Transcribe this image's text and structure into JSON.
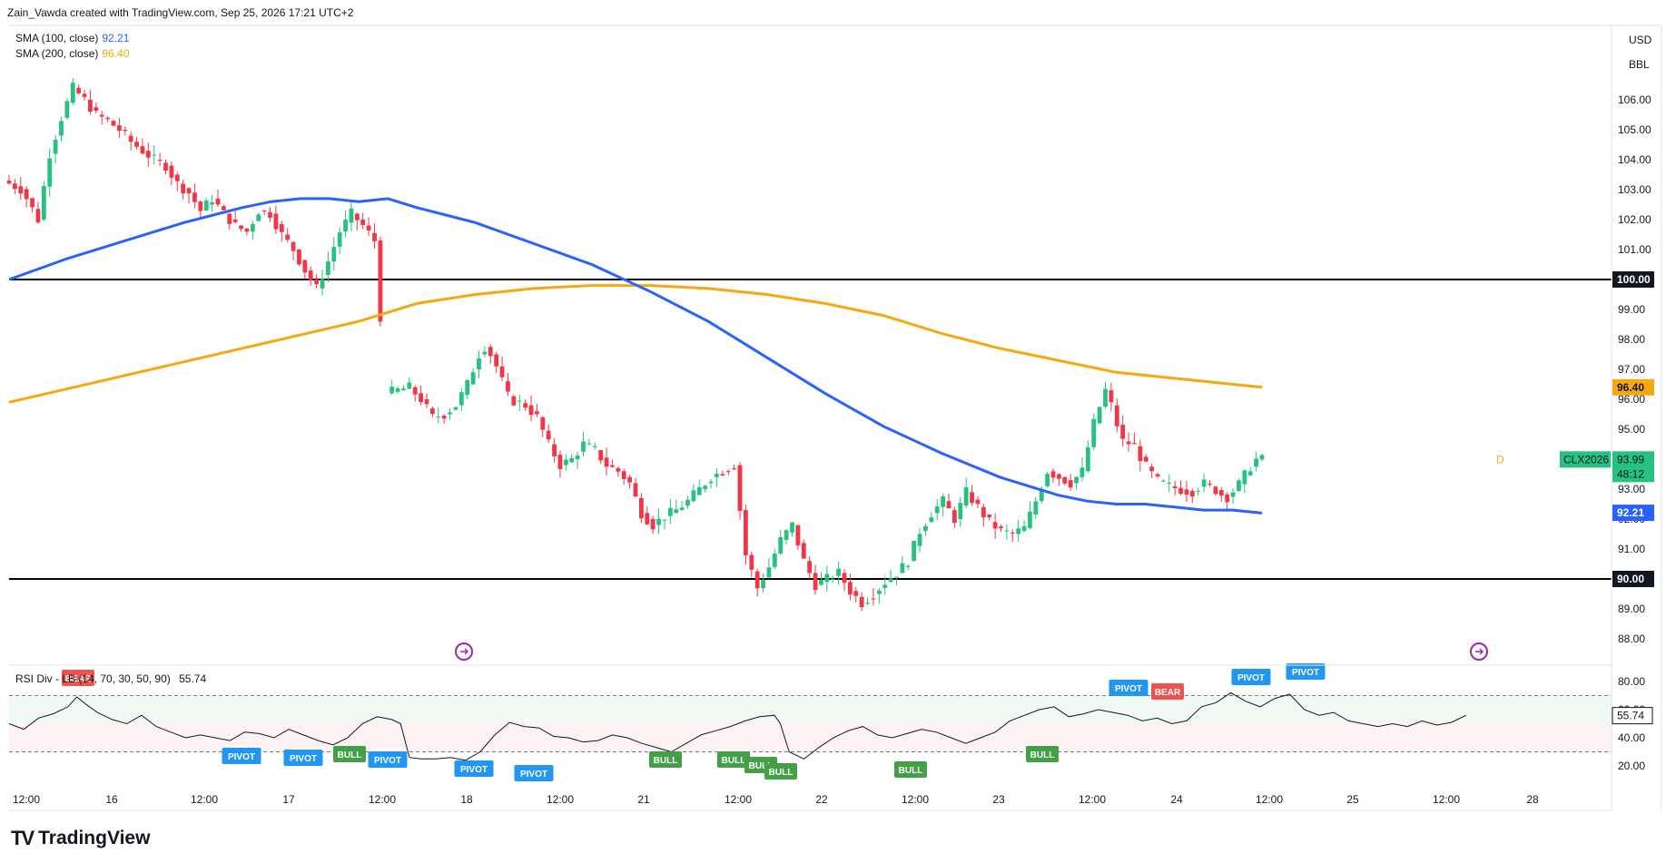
{
  "header": {
    "attribution": "Zain_Vawda created with TradingView.com, Sep 25, 2026 17:21 UTC+2"
  },
  "legend": {
    "sma100": {
      "label": "SMA (100, close)",
      "value": "92.21",
      "color": "#2962ff"
    },
    "sma200": {
      "label": "SMA (200, close)",
      "value": "96.40",
      "color": "#f5a90e"
    }
  },
  "axis_units": {
    "currency": "USD",
    "unit": "BBL"
  },
  "price_axis": {
    "ticks": [
      "106.00",
      "105.00",
      "104.00",
      "103.00",
      "102.00",
      "101.00",
      "100.00",
      "99.00",
      "98.00",
      "97.00",
      "96.00",
      "95.00",
      "94.00",
      "93.00",
      "92.00",
      "91.00",
      "90.00",
      "89.00",
      "88.00"
    ]
  },
  "price_labels": {
    "level_100": "100.00",
    "level_90": "90.00",
    "sma200": "96.40",
    "sma100": "92.21",
    "symbol": "CLX2026",
    "last_price": "93.99",
    "countdown": "48:12",
    "dividend_marker": "D"
  },
  "time_axis": {
    "labels": [
      "12:00",
      "16",
      "12:00",
      "17",
      "12:00",
      "18",
      "12:00",
      "21",
      "12:00",
      "22",
      "12:00",
      "23",
      "12:00",
      "24",
      "12:00",
      "25",
      "12:00",
      "28"
    ]
  },
  "rsi": {
    "legend": "RSI Div - LB (14, 70, 30, 50, 90)",
    "value": "55.74",
    "ticks": [
      "80.00",
      "60.00",
      "40.00",
      "20.00"
    ],
    "overbought": 70,
    "oversold": 30,
    "mid": 50,
    "markers": [
      {
        "text": "BEAR",
        "kind": "bear"
      },
      {
        "text": "PIVOT",
        "kind": "pivot"
      },
      {
        "text": "PIVOT",
        "kind": "pivot"
      },
      {
        "text": "BULL",
        "kind": "bull"
      },
      {
        "text": "PIVOT",
        "kind": "pivot"
      },
      {
        "text": "PIVOT",
        "kind": "pivot"
      },
      {
        "text": "PIVOT",
        "kind": "pivot"
      },
      {
        "text": "BULL",
        "kind": "bull"
      },
      {
        "text": "BULL",
        "kind": "bull"
      },
      {
        "text": "BULL",
        "kind": "bull"
      },
      {
        "text": "BULL",
        "kind": "bull"
      },
      {
        "text": "BULL",
        "kind": "bull"
      },
      {
        "text": "BULL",
        "kind": "bull"
      },
      {
        "text": "PIVOT",
        "kind": "pivot"
      },
      {
        "text": "BEAR",
        "kind": "bear"
      },
      {
        "text": "PIVOT",
        "kind": "pivot"
      },
      {
        "text": "PIVOT",
        "kind": "pivot"
      }
    ]
  },
  "colors": {
    "up": "#26c281",
    "down": "#f23645",
    "pivot": "#2196f3",
    "bull": "#43a047",
    "bear": "#ef5350",
    "sma100": "#2962ff",
    "sma200": "#f5a90e"
  },
  "brand": "TradingView",
  "chart_data": {
    "type": "candlestick",
    "symbol": "CLX2026",
    "ylim": [
      87.5,
      107.5
    ],
    "horizontal_levels": [
      100,
      90
    ],
    "sma100": [
      [
        0,
        100.0
      ],
      [
        20,
        100.7
      ],
      [
        40,
        101.3
      ],
      [
        60,
        101.9
      ],
      [
        80,
        102.4
      ],
      [
        90,
        102.6
      ],
      [
        100,
        102.7
      ],
      [
        110,
        102.7
      ],
      [
        120,
        102.6
      ],
      [
        130,
        102.7
      ],
      [
        140,
        102.4
      ],
      [
        160,
        101.9
      ],
      [
        180,
        101.2
      ],
      [
        200,
        100.5
      ],
      [
        220,
        99.6
      ],
      [
        240,
        98.6
      ],
      [
        260,
        97.4
      ],
      [
        280,
        96.2
      ],
      [
        300,
        95.1
      ],
      [
        320,
        94.2
      ],
      [
        340,
        93.4
      ],
      [
        360,
        92.8
      ],
      [
        370,
        92.6
      ],
      [
        380,
        92.5
      ],
      [
        390,
        92.5
      ],
      [
        400,
        92.4
      ],
      [
        410,
        92.3
      ],
      [
        420,
        92.3
      ],
      [
        430,
        92.2
      ]
    ],
    "sma200": [
      [
        0,
        95.9
      ],
      [
        40,
        96.8
      ],
      [
        80,
        97.7
      ],
      [
        120,
        98.6
      ],
      [
        140,
        99.2
      ],
      [
        160,
        99.5
      ],
      [
        180,
        99.7
      ],
      [
        200,
        99.8
      ],
      [
        220,
        99.8
      ],
      [
        240,
        99.7
      ],
      [
        260,
        99.5
      ],
      [
        280,
        99.2
      ],
      [
        300,
        98.8
      ],
      [
        320,
        98.2
      ],
      [
        340,
        97.7
      ],
      [
        360,
        97.3
      ],
      [
        380,
        96.9
      ],
      [
        400,
        96.7
      ],
      [
        420,
        96.5
      ],
      [
        430,
        96.4
      ]
    ],
    "rsi_series": [
      [
        0,
        50
      ],
      [
        5,
        46
      ],
      [
        10,
        54
      ],
      [
        15,
        57
      ],
      [
        20,
        62
      ],
      [
        23,
        69
      ],
      [
        26,
        64
      ],
      [
        30,
        58
      ],
      [
        35,
        53
      ],
      [
        40,
        50
      ],
      [
        45,
        56
      ],
      [
        50,
        48
      ],
      [
        55,
        44
      ],
      [
        60,
        40
      ],
      [
        65,
        42
      ],
      [
        70,
        40
      ],
      [
        75,
        38
      ],
      [
        80,
        44
      ],
      [
        85,
        43
      ],
      [
        90,
        40
      ],
      [
        95,
        46
      ],
      [
        100,
        42
      ],
      [
        105,
        38
      ],
      [
        110,
        35
      ],
      [
        115,
        40
      ],
      [
        120,
        50
      ],
      [
        125,
        55
      ],
      [
        130,
        53
      ],
      [
        133,
        50
      ],
      [
        136,
        26
      ],
      [
        140,
        25
      ],
      [
        145,
        25
      ],
      [
        150,
        26
      ],
      [
        155,
        24
      ],
      [
        160,
        30
      ],
      [
        165,
        42
      ],
      [
        170,
        51
      ],
      [
        175,
        48
      ],
      [
        180,
        47
      ],
      [
        185,
        41
      ],
      [
        190,
        40
      ],
      [
        195,
        37
      ],
      [
        200,
        38
      ],
      [
        205,
        42
      ],
      [
        210,
        40
      ],
      [
        215,
        36
      ],
      [
        220,
        33
      ],
      [
        225,
        30
      ],
      [
        230,
        36
      ],
      [
        235,
        42
      ],
      [
        240,
        45
      ],
      [
        245,
        48
      ],
      [
        250,
        52
      ],
      [
        255,
        55
      ],
      [
        260,
        56
      ],
      [
        262,
        50
      ],
      [
        265,
        30
      ],
      [
        270,
        25
      ],
      [
        275,
        33
      ],
      [
        280,
        40
      ],
      [
        285,
        45
      ],
      [
        290,
        48
      ],
      [
        295,
        42
      ],
      [
        300,
        40
      ],
      [
        305,
        43
      ],
      [
        310,
        46
      ],
      [
        315,
        44
      ],
      [
        320,
        40
      ],
      [
        325,
        36
      ],
      [
        330,
        40
      ],
      [
        335,
        44
      ],
      [
        340,
        52
      ],
      [
        345,
        56
      ],
      [
        350,
        60
      ],
      [
        355,
        62
      ],
      [
        360,
        55
      ],
      [
        365,
        57
      ],
      [
        370,
        60
      ],
      [
        375,
        58
      ],
      [
        380,
        56
      ],
      [
        385,
        52
      ],
      [
        390,
        54
      ],
      [
        395,
        50
      ],
      [
        400,
        52
      ],
      [
        405,
        62
      ],
      [
        410,
        65
      ],
      [
        415,
        72
      ],
      [
        420,
        66
      ],
      [
        425,
        62
      ],
      [
        430,
        68
      ],
      [
        435,
        71
      ],
      [
        440,
        60
      ],
      [
        445,
        56
      ],
      [
        450,
        58
      ],
      [
        455,
        52
      ],
      [
        460,
        50
      ],
      [
        465,
        48
      ],
      [
        470,
        50
      ],
      [
        475,
        48
      ],
      [
        480,
        52
      ],
      [
        485,
        49
      ],
      [
        490,
        51
      ],
      [
        495,
        56
      ]
    ]
  }
}
